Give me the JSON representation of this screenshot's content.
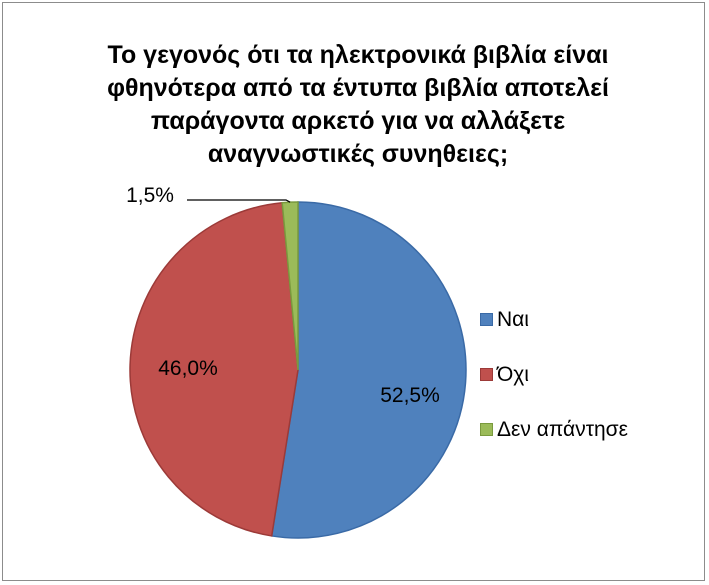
{
  "chart_data": {
    "type": "pie",
    "title_lines": [
      "Το γεγονός ότι τα ηλεκτρονικά βιβλία είναι",
      "φθηνότερα από τα έντυπα βιβλία αποτελεί",
      "παράγοντα αρκετό για να αλλάξετε",
      "αναγνωστικές συνηθειες;"
    ],
    "slices": [
      {
        "label": "Ναι",
        "value": 52.5,
        "value_label": "52,5%",
        "color": "#4f81bd",
        "edge": "#3a6aa6"
      },
      {
        "label": "Όχι",
        "value": 46.0,
        "value_label": "46,0%",
        "color": "#c0504d",
        "edge": "#9c3a38"
      },
      {
        "label": "Δεν απάντησε",
        "value": 1.5,
        "value_label": "1,5%",
        "color": "#9bbb59",
        "edge": "#7a9a3e"
      }
    ],
    "legend_position": "right"
  }
}
